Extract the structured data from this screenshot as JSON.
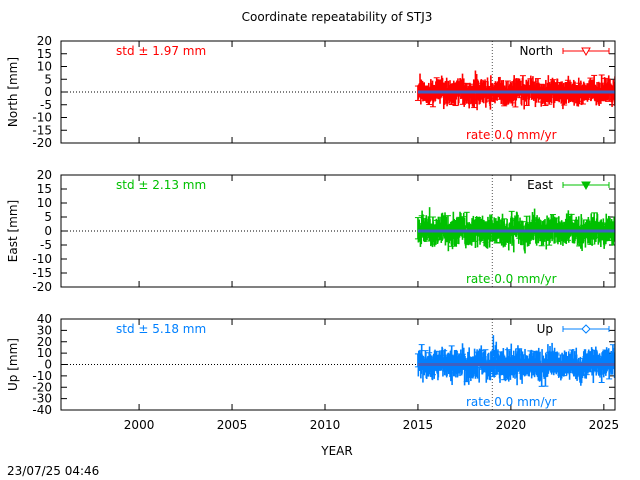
{
  "chart_data": {
    "type": "scatter",
    "title": "Coordinate repeatability of STJ3",
    "xlabel": "YEAR",
    "timestamp": "23/07/25 04:46",
    "xlim": [
      1995.8,
      2025.6
    ],
    "xticks": [
      2000,
      2005,
      2010,
      2015,
      2020,
      2025
    ],
    "reference_year": 2019,
    "data_start_year": 2015,
    "data_end_year": 2025.6,
    "panels": [
      {
        "name": "North",
        "ylabel": "North [mm]",
        "ylim": [
          -20,
          20
        ],
        "yticks": [
          -20,
          -15,
          -10,
          -5,
          0,
          5,
          10,
          15,
          20
        ],
        "std_label": "std ± 1.97 mm",
        "rate_label": "rate  0.0 mm/yr",
        "legend": "North",
        "marker": "triangle-down-open",
        "color": "#ff0000",
        "std": 1.97,
        "rate": 0.0
      },
      {
        "name": "East",
        "ylabel": "East [mm]",
        "ylim": [
          -20,
          20
        ],
        "yticks": [
          -20,
          -15,
          -10,
          -5,
          0,
          5,
          10,
          15,
          20
        ],
        "std_label": "std ± 2.13 mm",
        "rate_label": "rate  0.0 mm/yr",
        "legend": "East",
        "marker": "triangle-down-filled",
        "color": "#00c000",
        "std": 2.13,
        "rate": 0.0
      },
      {
        "name": "Up",
        "ylabel": "Up [mm]",
        "ylim": [
          -40,
          40
        ],
        "yticks": [
          -40,
          -30,
          -20,
          -10,
          0,
          10,
          20,
          30,
          40
        ],
        "std_label": "std ± 5.18 mm",
        "rate_label": "rate  0.0 mm/yr",
        "legend": "Up",
        "marker": "diamond-open",
        "color": "#0080ff",
        "std": 5.18,
        "rate": 0.0
      }
    ],
    "trend_color": "#4060c0"
  }
}
